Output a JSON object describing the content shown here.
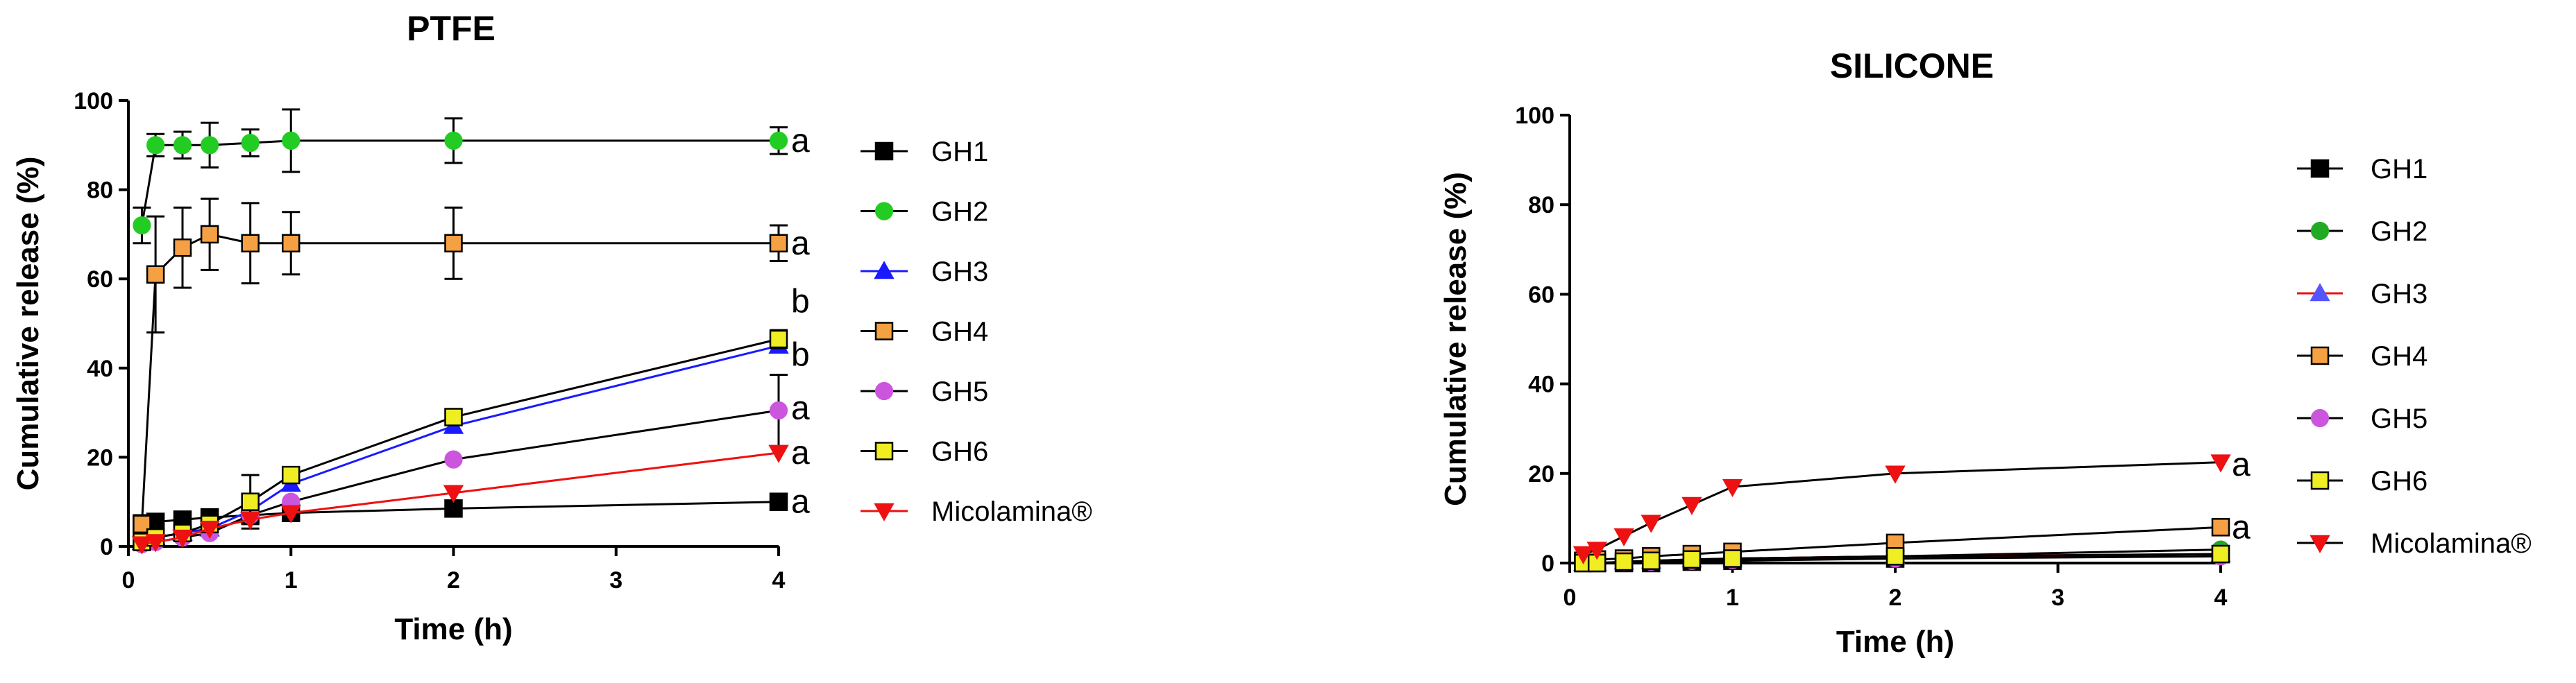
{
  "chart_data": [
    {
      "type": "line",
      "title": "PTFE",
      "xlabel": "Time (h)",
      "ylabel": "Cumulative release (%)",
      "xlim": [
        0,
        4
      ],
      "ylim": [
        0,
        100
      ],
      "xticks": [
        0,
        1,
        2,
        3,
        4
      ],
      "yticks": [
        0,
        20,
        40,
        60,
        80,
        100
      ],
      "grid": false,
      "legend_position": "right",
      "x": [
        0.083,
        0.167,
        0.333,
        0.5,
        0.75,
        1,
        2,
        4
      ],
      "series": [
        {
          "name": "GH1",
          "marker": "square",
          "color": "#000000",
          "marker_fill": "#000000",
          "line_color": "#000000",
          "values": [
            5,
            5.5,
            6,
            6.5,
            7,
            7.5,
            8.5,
            10
          ]
        },
        {
          "name": "GH2",
          "marker": "circle",
          "color": "#22cc22",
          "marker_fill": "#22cc22",
          "line_color": "#000000",
          "values": [
            72,
            90,
            90,
            90,
            90.5,
            91,
            91,
            91
          ],
          "errors": [
            4,
            2.5,
            3,
            5,
            3,
            7,
            5,
            3
          ]
        },
        {
          "name": "GH3",
          "marker": "triangle",
          "color": "#1a1aff",
          "marker_fill": "#1a1aff",
          "line_color": "#1a1aff",
          "values": [
            1,
            2,
            3,
            4,
            8,
            14,
            27,
            45
          ]
        },
        {
          "name": "GH4",
          "marker": "square",
          "color": "#f5a042",
          "marker_fill": "#f5a042",
          "line_color": "#000000",
          "values": [
            5,
            61,
            67,
            70,
            68,
            68,
            68,
            68
          ],
          "errors": [
            2,
            13,
            9,
            8,
            9,
            7,
            8,
            4
          ]
        },
        {
          "name": "GH5",
          "marker": "circle",
          "color": "#cc55dd",
          "marker_fill": "#cc55dd",
          "line_color": "#000000",
          "values": [
            0.5,
            1,
            2,
            3,
            7,
            10,
            19.5,
            30.5
          ],
          "errors": [
            0,
            0,
            0,
            0,
            2,
            0,
            0,
            8
          ]
        },
        {
          "name": "GH6",
          "marker": "square",
          "color": "#eeee22",
          "marker_fill": "#eeee22",
          "line_color": "#000000",
          "values": [
            1,
            2,
            3,
            5,
            10,
            16,
            29,
            46.5
          ],
          "errors": [
            0,
            0,
            0,
            0,
            6,
            0,
            0,
            2
          ]
        },
        {
          "name": "Micolamina®",
          "marker": "triangle-down",
          "color": "#ee1111",
          "marker_fill": "#ee1111",
          "line_color": "#ee1111",
          "values": [
            0.5,
            1,
            2,
            4,
            6,
            7.5,
            12,
            21
          ]
        }
      ],
      "annotations": [
        {
          "text": "a",
          "x": 4,
          "y": 91
        },
        {
          "text": "a",
          "x": 4,
          "y": 68
        },
        {
          "text": "b",
          "x": 4,
          "y": 55
        },
        {
          "text": "b",
          "x": 4,
          "y": 43
        },
        {
          "text": "a",
          "x": 4,
          "y": 31
        },
        {
          "text": "a",
          "x": 4,
          "y": 21
        },
        {
          "text": "a",
          "x": 4,
          "y": 10
        }
      ]
    },
    {
      "type": "line",
      "title": "SILICONE",
      "xlabel": "Time (h)",
      "ylabel": "Cumulative release (%)",
      "xlim": [
        0,
        4
      ],
      "ylim": [
        0,
        100
      ],
      "xticks": [
        0,
        1,
        2,
        3,
        4
      ],
      "yticks": [
        0,
        20,
        40,
        60,
        80,
        100
      ],
      "grid": false,
      "legend_position": "right",
      "x": [
        0.083,
        0.167,
        0.333,
        0.5,
        0.75,
        1,
        2,
        4
      ],
      "series": [
        {
          "name": "GH1",
          "marker": "square",
          "color": "#000000",
          "marker_fill": "#000000",
          "line_color": "#000000",
          "values": [
            0,
            0,
            0,
            0,
            0.3,
            0.5,
            1,
            2
          ]
        },
        {
          "name": "GH2",
          "marker": "circle",
          "color": "#22aa22",
          "marker_fill": "#22aa22",
          "line_color": "#000000",
          "values": [
            0,
            0,
            0.2,
            0.5,
            0.7,
            1,
            1.5,
            3
          ]
        },
        {
          "name": "GH3",
          "marker": "triangle",
          "color": "#5555ff",
          "marker_fill": "#5555ff",
          "line_color": "#ee1111",
          "values": [
            0,
            0,
            0.3,
            0.5,
            0.8,
            1,
            1.5,
            2
          ]
        },
        {
          "name": "GH4",
          "marker": "square",
          "color": "#f5a042",
          "marker_fill": "#f5a042",
          "line_color": "#000000",
          "values": [
            0.5,
            0.8,
            1,
            1.5,
            2,
            2.5,
            4.5,
            8
          ]
        },
        {
          "name": "GH5",
          "marker": "circle",
          "color": "#cc55dd",
          "marker_fill": "#cc55dd",
          "line_color": "#000000",
          "values": [
            0,
            0,
            0.2,
            0.3,
            0.5,
            0.7,
            1,
            1.5
          ]
        },
        {
          "name": "GH6",
          "marker": "square",
          "color": "#eeee22",
          "marker_fill": "#eeee22",
          "line_color": "#000000",
          "values": [
            0,
            0,
            0.3,
            0.5,
            0.8,
            1,
            1.5,
            2
          ]
        },
        {
          "name": "Micolamina®",
          "marker": "triangle-down",
          "color": "#ee1111",
          "marker_fill": "#ee1111",
          "line_color": "#000000",
          "values": [
            2,
            3,
            6,
            9,
            13,
            17,
            20,
            22.5
          ]
        }
      ],
      "annotations": [
        {
          "text": "a",
          "x": 4,
          "y": 22
        },
        {
          "text": "a",
          "x": 4,
          "y": 8
        }
      ]
    }
  ]
}
